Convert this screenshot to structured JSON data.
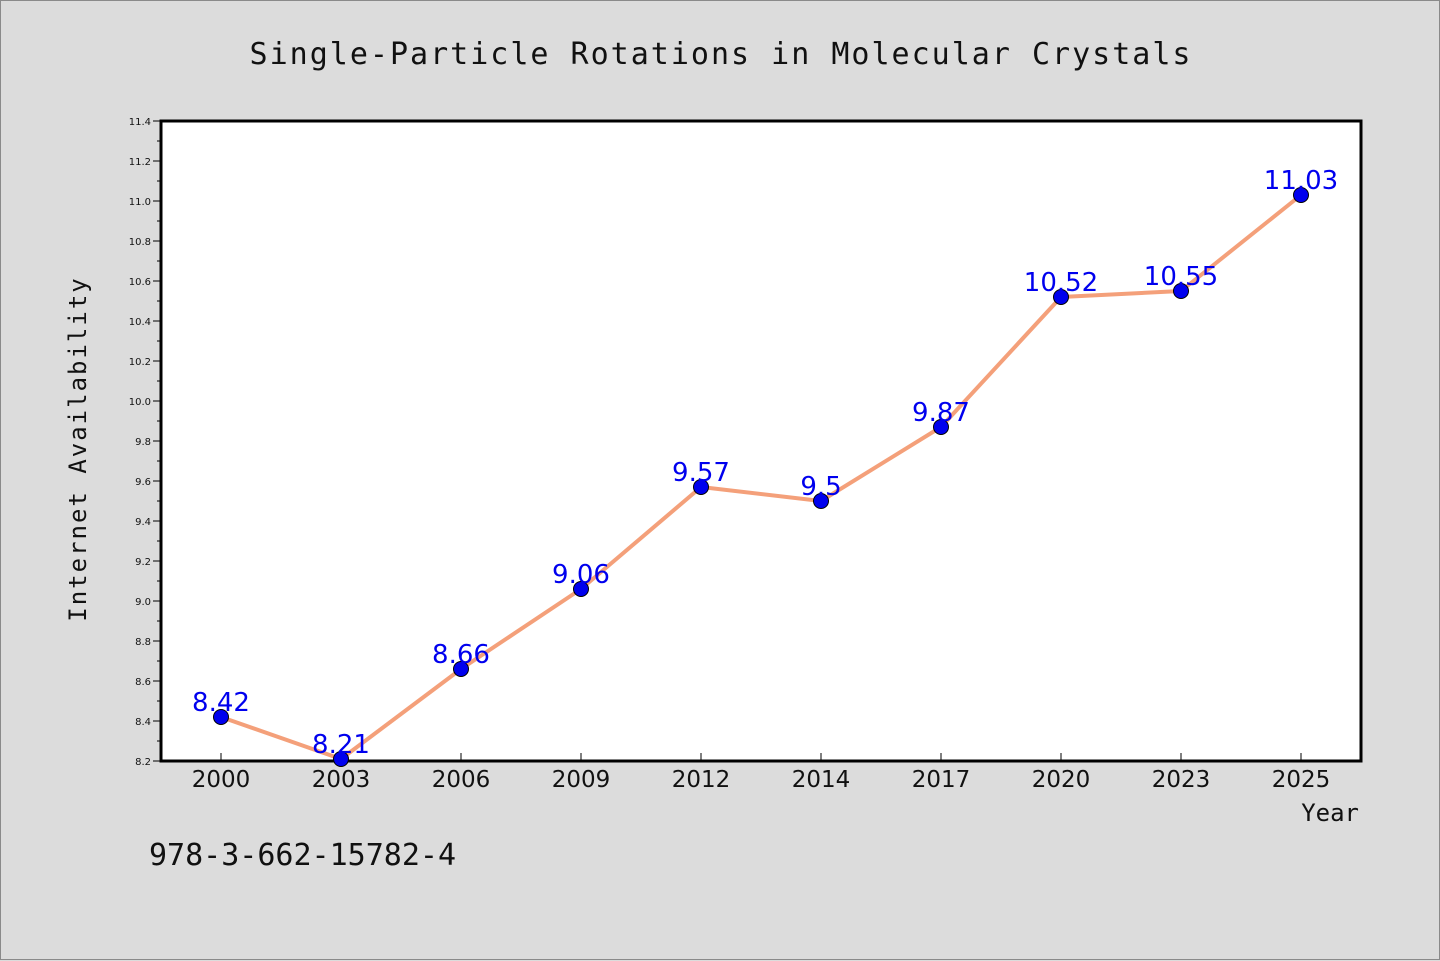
{
  "chart_data": {
    "type": "line",
    "title": "Single-Particle Rotations in Molecular Crystals",
    "xlabel": "Year",
    "ylabel": "Internet Availability",
    "categories": [
      "2000",
      "2003",
      "2006",
      "2009",
      "2012",
      "2014",
      "2017",
      "2020",
      "2023",
      "2025"
    ],
    "series": [
      {
        "values": [
          8.42,
          8.21,
          8.66,
          9.06,
          9.57,
          9.5,
          9.87,
          10.52,
          10.55,
          11.03
        ],
        "line_color": "#f4a07a",
        "marker_color": "#0000ee"
      }
    ],
    "data_labels": [
      "8.42",
      "8.21",
      "8.66",
      "9.06",
      "9.57",
      "9.5",
      "9.87",
      "10.52",
      "10.55",
      "11.03"
    ],
    "ylim": [
      8.2,
      11.4
    ],
    "yticks": [
      "8.2",
      "8.4",
      "8.6",
      "8.8",
      "9.0",
      "9.2",
      "9.4",
      "9.6",
      "9.8",
      "10.0",
      "10.2",
      "10.4",
      "10.6",
      "10.8",
      "11.0",
      "11.2",
      "11.4"
    ],
    "grid": false,
    "legend": "none"
  },
  "footer": {
    "isbn": "978-3-662-15782-4"
  },
  "colors": {
    "background": "#dcdcdc",
    "plot_area": "#ffffff",
    "axis": "#000000"
  }
}
